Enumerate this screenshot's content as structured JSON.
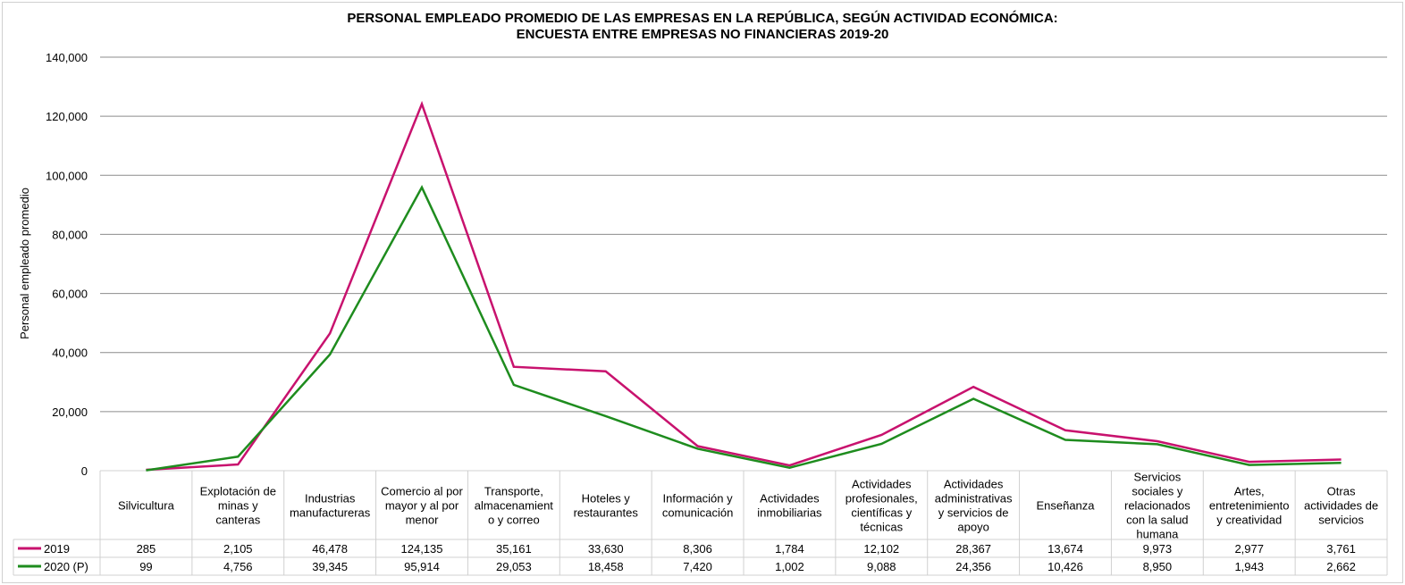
{
  "chart_data": {
    "type": "line",
    "title": "PERSONAL EMPLEADO PROMEDIO DE LAS EMPRESAS EN LA REPÚBLICA, SEGÚN ACTIVIDAD ECONÓMICA:",
    "subtitle": "ENCUESTA ENTRE EMPRESAS NO FINANCIERAS 2019-20",
    "xlabel": "",
    "ylabel": "Personal empleado promedio",
    "ylim": [
      0,
      140000
    ],
    "yticks": [
      "0",
      "20,000",
      "40,000",
      "60,000",
      "80,000",
      "100,000",
      "120,000",
      "140,000"
    ],
    "grid": true,
    "legend": "data-table",
    "categories": [
      [
        "Silvicultura"
      ],
      [
        "Explotación de",
        "minas y",
        "canteras"
      ],
      [
        "Industrias",
        "manufactureras"
      ],
      [
        "Comercio al por",
        "mayor y al por",
        "menor"
      ],
      [
        "Transporte,",
        "almacenamient",
        "o y correo"
      ],
      [
        "Hoteles y",
        "restaurantes"
      ],
      [
        "Información y",
        "comunicación"
      ],
      [
        "Actividades",
        "inmobiliarias"
      ],
      [
        "Actividades",
        "profesionales,",
        "científicas y",
        "técnicas"
      ],
      [
        "Actividades",
        "administrativas",
        "y servicios de",
        "apoyo"
      ],
      [
        "Enseñanza"
      ],
      [
        "Servicios",
        "sociales y",
        "relacionados",
        "con la salud",
        "humana"
      ],
      [
        "Artes,",
        "entretenimiento",
        "y creatividad"
      ],
      [
        "Otras",
        "actividades de",
        "servicios"
      ]
    ],
    "series": [
      {
        "name": "2019",
        "color": "#c8126e",
        "values": [
          285,
          2105,
          46478,
          124135,
          35161,
          33630,
          8306,
          1784,
          12102,
          28367,
          13674,
          9973,
          2977,
          3761
        ],
        "labels": [
          "285",
          "2,105",
          "46,478",
          "124,135",
          "35,161",
          "33,630",
          "8,306",
          "1,784",
          "12,102",
          "28,367",
          "13,674",
          "9,973",
          "2,977",
          "3,761"
        ]
      },
      {
        "name": "2020 (P)",
        "color": "#1e8c1e",
        "values": [
          99,
          4756,
          39345,
          95914,
          29053,
          18458,
          7420,
          1002,
          9088,
          24356,
          10426,
          8950,
          1943,
          2662
        ],
        "labels": [
          "99",
          "4,756",
          "39,345",
          "95,914",
          "29,053",
          "18,458",
          "7,420",
          "1,002",
          "9,088",
          "24,356",
          "10,426",
          "8,950",
          "1,943",
          "2,662"
        ]
      }
    ]
  }
}
